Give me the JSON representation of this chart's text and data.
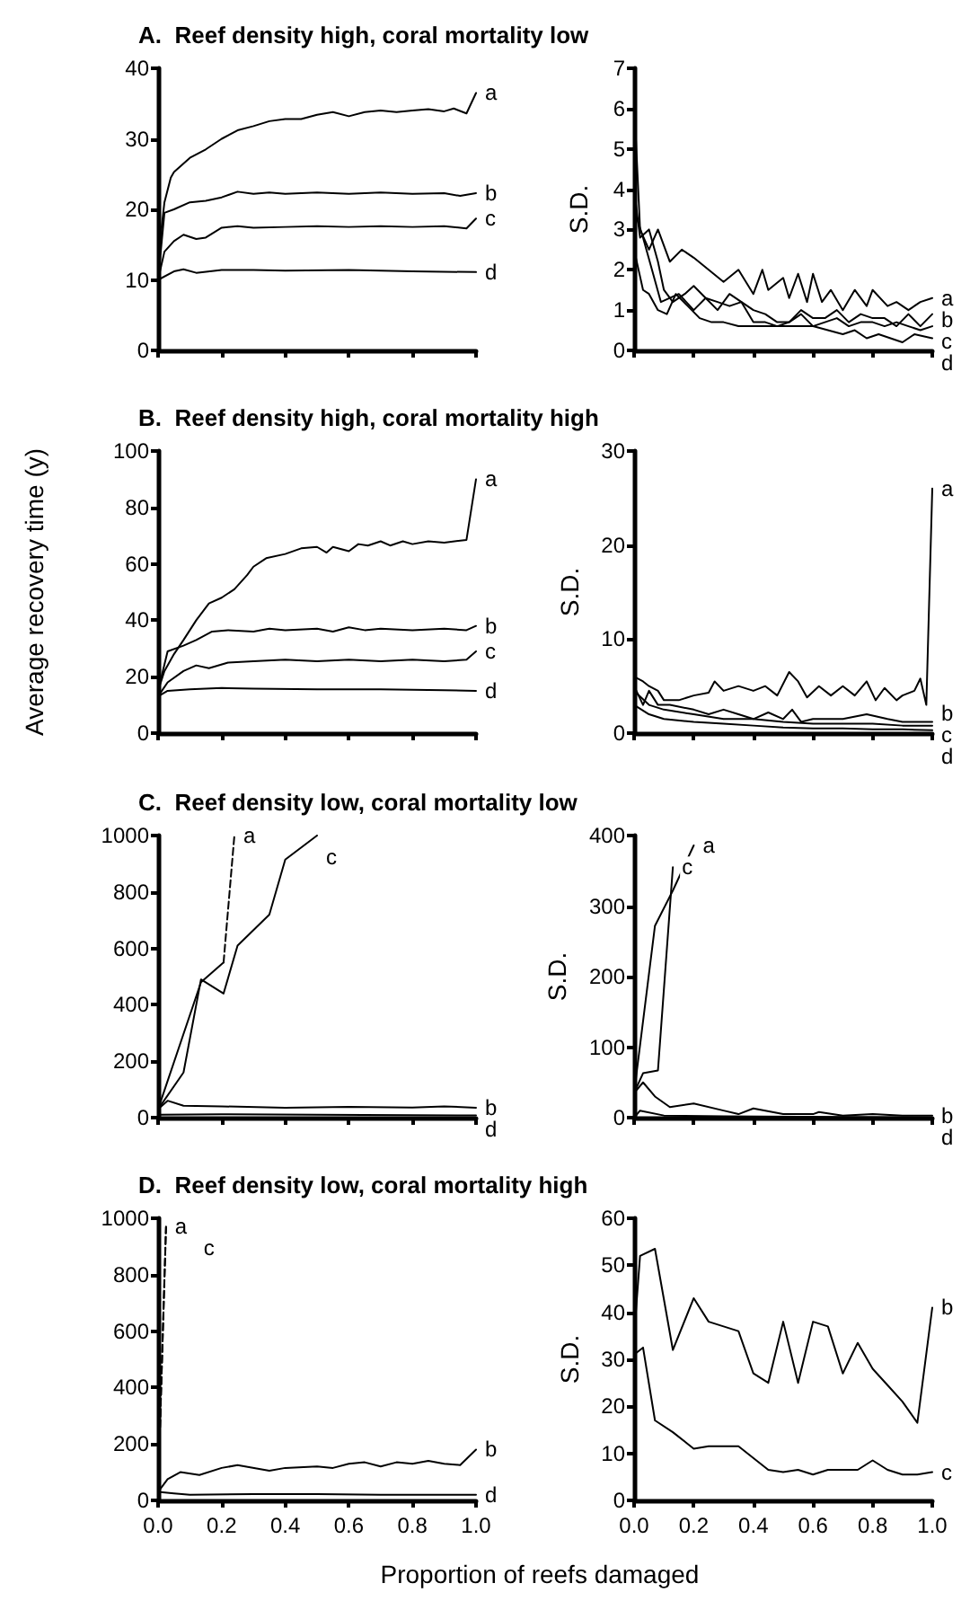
{
  "chart_data": [
    {
      "type": "line",
      "title": "A.  Reef density high, coral mortality low",
      "xlim": [
        0,
        1
      ],
      "xticks": [
        0,
        0.2,
        0.4,
        0.6,
        0.8,
        1
      ],
      "ylim": [
        0,
        40
      ],
      "yticks": [
        0,
        10,
        20,
        30,
        40
      ],
      "tick_labels": "y",
      "series": [
        {
          "name": "a",
          "color": "#000000",
          "x": [
            0,
            0.01,
            0.02,
            0.04,
            0.05,
            0.1,
            0.15,
            0.2,
            0.25,
            0.3,
            0.35,
            0.4,
            0.45,
            0.5,
            0.55,
            0.6,
            0.65,
            0.7,
            0.75,
            0.8,
            0.85,
            0.9,
            0.93,
            0.97,
            1
          ],
          "values": [
            10,
            17,
            21,
            24.5,
            25.3,
            27.3,
            28.5,
            30,
            31.2,
            31.8,
            32.5,
            32.8,
            32.8,
            33.4,
            33.8,
            33.2,
            33.8,
            34,
            33.8,
            34,
            34.2,
            33.9,
            34.3,
            33.6,
            36.5
          ]
        },
        {
          "name": "b",
          "color": "#000000",
          "x": [
            0,
            0.02,
            0.05,
            0.1,
            0.15,
            0.2,
            0.25,
            0.3,
            0.35,
            0.4,
            0.5,
            0.6,
            0.7,
            0.8,
            0.9,
            0.95,
            1
          ],
          "values": [
            10,
            19.5,
            20,
            21,
            21.2,
            21.7,
            22.5,
            22.2,
            22.4,
            22.2,
            22.4,
            22.2,
            22.4,
            22.2,
            22.3,
            21.9,
            22.3
          ]
        },
        {
          "name": "c",
          "color": "#000000",
          "x": [
            0,
            0.02,
            0.05,
            0.08,
            0.12,
            0.15,
            0.2,
            0.25,
            0.3,
            0.4,
            0.5,
            0.6,
            0.7,
            0.8,
            0.9,
            0.97,
            1
          ],
          "values": [
            10,
            14,
            15.5,
            16.4,
            15.8,
            16,
            17.4,
            17.6,
            17.4,
            17.5,
            17.6,
            17.5,
            17.6,
            17.5,
            17.6,
            17.3,
            18.7
          ]
        },
        {
          "name": "d",
          "color": "#000000",
          "x": [
            0,
            0.05,
            0.08,
            0.12,
            0.2,
            0.3,
            0.4,
            0.6,
            0.8,
            1
          ],
          "values": [
            10,
            11.2,
            11.5,
            11,
            11.4,
            11.4,
            11.3,
            11.4,
            11.2,
            11.1
          ]
        }
      ]
    },
    {
      "type": "line",
      "ylabel": "S.D.",
      "xlim": [
        0,
        1
      ],
      "xticks": [
        0,
        0.2,
        0.4,
        0.6,
        0.8,
        1
      ],
      "ylim": [
        0,
        7
      ],
      "yticks": [
        0,
        1,
        2,
        3,
        4,
        5,
        6,
        7
      ],
      "tick_labels": "y",
      "series": [
        {
          "name": "a",
          "color": "#000000",
          "x": [
            0,
            0.02,
            0.05,
            0.08,
            0.12,
            0.16,
            0.2,
            0.25,
            0.3,
            0.35,
            0.4,
            0.43,
            0.45,
            0.5,
            0.52,
            0.55,
            0.58,
            0.6,
            0.63,
            0.66,
            0.7,
            0.74,
            0.78,
            0.8,
            0.85,
            0.88,
            0.92,
            0.96,
            1
          ],
          "values": [
            6.2,
            3,
            2.5,
            3,
            2.2,
            2.5,
            2.3,
            2,
            1.7,
            2,
            1.4,
            2,
            1.5,
            1.8,
            1.3,
            1.9,
            1.2,
            1.9,
            1.2,
            1.5,
            1,
            1.5,
            1.1,
            1.5,
            1.1,
            1.2,
            1,
            1.2,
            1.3
          ]
        },
        {
          "name": "b",
          "color": "#000000",
          "x": [
            0,
            0.02,
            0.05,
            0.08,
            0.1,
            0.13,
            0.17,
            0.2,
            0.24,
            0.28,
            0.32,
            0.36,
            0.4,
            0.44,
            0.48,
            0.52,
            0.56,
            0.6,
            0.64,
            0.68,
            0.72,
            0.76,
            0.8,
            0.84,
            0.88,
            0.92,
            0.96,
            1
          ],
          "values": [
            4,
            2.8,
            3,
            2.2,
            1.5,
            1.2,
            1.4,
            1.6,
            1.3,
            1,
            1.4,
            1.2,
            1,
            0.9,
            0.7,
            0.7,
            1,
            0.8,
            0.8,
            1,
            0.7,
            0.9,
            0.8,
            0.8,
            0.6,
            0.9,
            0.6,
            0.9
          ]
        },
        {
          "name": "c",
          "color": "#000000",
          "x": [
            0,
            0.03,
            0.06,
            0.09,
            0.12,
            0.15,
            0.2,
            0.24,
            0.28,
            0.32,
            0.36,
            0.4,
            0.44,
            0.48,
            0.52,
            0.56,
            0.6,
            0.64,
            0.68,
            0.72,
            0.76,
            0.8,
            0.84,
            0.88,
            0.92,
            0.96,
            1
          ],
          "values": [
            3.5,
            2.8,
            2,
            1.2,
            1.3,
            1.4,
            1,
            1.3,
            1.2,
            1.1,
            1.2,
            0.7,
            0.7,
            0.6,
            0.7,
            0.9,
            0.6,
            0.7,
            0.8,
            0.6,
            0.7,
            0.7,
            0.6,
            0.7,
            0.6,
            0.5,
            0.6
          ]
        },
        {
          "name": "d",
          "color": "#000000",
          "x": [
            0,
            0.03,
            0.05,
            0.08,
            0.11,
            0.14,
            0.18,
            0.22,
            0.26,
            0.3,
            0.35,
            0.4,
            0.45,
            0.5,
            0.55,
            0.6,
            0.65,
            0.7,
            0.74,
            0.78,
            0.82,
            0.86,
            0.9,
            0.94,
            1
          ],
          "values": [
            2.5,
            1.5,
            1.4,
            1,
            0.9,
            1.4,
            1.1,
            0.8,
            0.7,
            0.7,
            0.6,
            0.6,
            0.6,
            0.6,
            0.6,
            0.6,
            0.5,
            0.4,
            0.5,
            0.3,
            0.4,
            0.3,
            0.2,
            0.4,
            0.3
          ]
        }
      ]
    },
    {
      "type": "line",
      "title": "B.  Reef density high, coral mortality high",
      "ylabel": "Average recovery time (y)",
      "xlim": [
        0,
        1
      ],
      "xticks": [
        0,
        0.2,
        0.4,
        0.6,
        0.8,
        1
      ],
      "ylim": [
        0,
        100
      ],
      "yticks": [
        0,
        20,
        40,
        60,
        80,
        100
      ],
      "tick_labels": "y",
      "series": [
        {
          "name": "a",
          "color": "#000000",
          "x": [
            0,
            0.02,
            0.05,
            0.08,
            0.12,
            0.16,
            0.2,
            0.24,
            0.28,
            0.3,
            0.34,
            0.4,
            0.45,
            0.5,
            0.53,
            0.55,
            0.6,
            0.63,
            0.66,
            0.7,
            0.73,
            0.77,
            0.8,
            0.85,
            0.9,
            0.97,
            1
          ],
          "values": [
            15,
            22,
            28,
            33,
            40,
            46,
            48,
            51,
            56,
            59,
            62,
            63.5,
            65.5,
            66,
            64,
            66,
            64.5,
            67,
            66.5,
            68,
            66.5,
            68,
            67,
            68,
            67.5,
            68.5,
            90
          ]
        },
        {
          "name": "b",
          "color": "#000000",
          "x": [
            0,
            0.03,
            0.08,
            0.12,
            0.17,
            0.22,
            0.3,
            0.35,
            0.4,
            0.5,
            0.55,
            0.6,
            0.65,
            0.7,
            0.8,
            0.9,
            0.97,
            1
          ],
          "values": [
            15,
            29,
            31,
            33,
            36,
            36.5,
            36,
            37,
            36.5,
            37,
            36,
            37.5,
            36.5,
            37,
            36.5,
            37,
            36.5,
            38
          ]
        },
        {
          "name": "c",
          "color": "#000000",
          "x": [
            0,
            0.03,
            0.08,
            0.12,
            0.16,
            0.22,
            0.3,
            0.4,
            0.5,
            0.6,
            0.7,
            0.8,
            0.9,
            0.97,
            1
          ],
          "values": [
            13,
            18,
            22,
            24,
            23,
            25,
            25.5,
            26,
            25.5,
            26,
            25.5,
            26,
            25.5,
            26,
            29
          ]
        },
        {
          "name": "d",
          "color": "#000000",
          "x": [
            0,
            0.03,
            0.1,
            0.2,
            0.3,
            0.5,
            0.7,
            0.9,
            1
          ],
          "values": [
            13,
            15,
            15.5,
            16,
            15.8,
            15.5,
            15.5,
            15.2,
            15
          ]
        }
      ]
    },
    {
      "type": "line",
      "ylabel": "S.D.",
      "xlim": [
        0,
        1
      ],
      "xticks": [
        0,
        0.2,
        0.4,
        0.6,
        0.8,
        1
      ],
      "ylim": [
        0,
        30
      ],
      "yticks": [
        0,
        10,
        20,
        30
      ],
      "tick_labels": "y",
      "series": [
        {
          "name": "a",
          "color": "#000000",
          "x": [
            0,
            0.03,
            0.05,
            0.08,
            0.1,
            0.15,
            0.2,
            0.25,
            0.27,
            0.3,
            0.35,
            0.4,
            0.44,
            0.48,
            0.52,
            0.55,
            0.58,
            0.62,
            0.66,
            0.7,
            0.74,
            0.78,
            0.81,
            0.84,
            0.88,
            0.9,
            0.94,
            0.96,
            0.98,
            1
          ],
          "values": [
            6,
            5.5,
            5,
            4.5,
            3.5,
            3.5,
            4,
            4.3,
            5.5,
            4.5,
            5,
            4.5,
            5,
            4,
            6.5,
            5.5,
            3.8,
            5,
            4,
            5,
            4,
            5.5,
            3.5,
            4.8,
            3.5,
            4,
            4.5,
            5.8,
            3,
            26
          ]
        },
        {
          "name": "b",
          "color": "#000000",
          "x": [
            0,
            0.03,
            0.05,
            0.08,
            0.12,
            0.2,
            0.25,
            0.3,
            0.35,
            0.4,
            0.45,
            0.5,
            0.53,
            0.56,
            0.6,
            0.7,
            0.78,
            0.85,
            0.9,
            1
          ],
          "values": [
            5,
            3,
            4.5,
            3,
            3,
            2.5,
            2,
            2.5,
            2,
            1.5,
            2.2,
            1.5,
            2.5,
            1.2,
            1.5,
            1.5,
            2,
            1.5,
            1.2,
            1.2
          ]
        },
        {
          "name": "c",
          "color": "#000000",
          "x": [
            0,
            0.05,
            0.1,
            0.2,
            0.3,
            0.4,
            0.5,
            0.6,
            0.7,
            0.8,
            0.9,
            1
          ],
          "values": [
            4.5,
            3,
            2.5,
            2,
            1.5,
            1.5,
            1.2,
            1,
            1,
            1,
            0.8,
            0.8
          ]
        },
        {
          "name": "d",
          "color": "#000000",
          "x": [
            0,
            0.05,
            0.1,
            0.2,
            0.3,
            0.4,
            0.5,
            0.6,
            0.7,
            0.8,
            0.9,
            1
          ],
          "values": [
            3,
            2,
            1.5,
            1.2,
            1,
            0.8,
            0.6,
            0.5,
            0.5,
            0.4,
            0.4,
            0.3
          ]
        }
      ]
    },
    {
      "type": "line",
      "title": "C.  Reef density low, coral mortality low",
      "xlim": [
        0,
        1
      ],
      "xticks": [
        0,
        0.2,
        0.4,
        0.6,
        0.8,
        1
      ],
      "ylim": [
        0,
        1000
      ],
      "yticks": [
        0,
        200,
        400,
        600,
        800,
        1000
      ],
      "tick_labels": "y",
      "series": [
        {
          "color": "#000000",
          "x": [
            0,
            0.135,
            0.206
          ],
          "values": [
            30,
            480,
            550
          ]
        },
        {
          "name": "a",
          "color": "#000000",
          "line_style": "dashed",
          "x": [
            0.206,
            0.24
          ],
          "values": [
            550,
            1000
          ]
        },
        {
          "name": "c",
          "color": "#000000",
          "x": [
            0,
            0.08,
            0.135,
            0.206,
            0.25,
            0.35,
            0.4,
            0.5
          ],
          "values": [
            30,
            160,
            490,
            440,
            610,
            720,
            915,
            1000
          ]
        },
        {
          "name": "b",
          "color": "#000000",
          "x": [
            0,
            0.03,
            0.08,
            0.2,
            0.4,
            0.6,
            0.8,
            0.9,
            1
          ],
          "values": [
            30,
            60,
            42,
            40,
            35,
            38,
            36,
            40,
            35
          ]
        },
        {
          "name": "d",
          "color": "#000000",
          "x": [
            0,
            0.2,
            0.5,
            1
          ],
          "values": [
            10,
            12,
            10,
            8
          ]
        }
      ]
    },
    {
      "type": "line",
      "ylabel": "S.D.",
      "xlim": [
        0,
        1
      ],
      "xticks": [
        0,
        0.2,
        0.4,
        0.6,
        0.8,
        1
      ],
      "ylim": [
        0,
        400
      ],
      "yticks": [
        0,
        100,
        200,
        300,
        400
      ],
      "tick_labels": "y",
      "series": [
        {
          "name": "c",
          "color": "#000000",
          "x": [
            0,
            0.03,
            0.08,
            0.13
          ],
          "values": [
            35,
            63,
            67,
            355
          ]
        },
        {
          "name": "a",
          "color": "#000000",
          "x": [
            0,
            0.07,
            0.13,
            0.2
          ],
          "values": [
            35,
            272,
            322,
            386
          ]
        },
        {
          "name": "b",
          "color": "#000000",
          "x": [
            0,
            0.03,
            0.07,
            0.12,
            0.2,
            0.3,
            0.35,
            0.4,
            0.5,
            0.6,
            0.62,
            0.7,
            0.8,
            0.9,
            1
          ],
          "values": [
            35,
            50,
            30,
            15,
            20,
            10,
            5,
            13,
            5,
            5,
            8,
            3,
            5,
            3,
            3
          ]
        },
        {
          "name": "d",
          "color": "#000000",
          "x": [
            0,
            0.02,
            0.1,
            0.3,
            1
          ],
          "values": [
            0,
            10,
            3,
            2,
            0
          ]
        }
      ]
    },
    {
      "type": "line",
      "title": "D.  Reef density low, coral mortality high",
      "xlabel": "Proportion of reefs damaged",
      "xlim": [
        0,
        1
      ],
      "xticks": [
        {
          "value": 0,
          "label": "0.0"
        },
        {
          "value": 0.2,
          "label": "0.2"
        },
        {
          "value": 0.4,
          "label": "0.4"
        },
        {
          "value": 0.6,
          "label": "0.6"
        },
        {
          "value": 0.8,
          "label": "0.8"
        },
        {
          "value": 1,
          "label": "1.0"
        }
      ],
      "ylim": [
        0,
        1000
      ],
      "yticks": [
        0,
        200,
        400,
        600,
        800,
        1000
      ],
      "series": [
        {
          "name": "a",
          "color": "#000000",
          "line_style": "dashed",
          "x": [
            0,
            0.025
          ],
          "values": [
            30,
            970
          ]
        },
        {
          "name": "c",
          "color": "#000000",
          "line_style": "dashed",
          "x": [
            0,
            0.025
          ],
          "values": [
            30,
            970
          ]
        },
        {
          "name": "b",
          "color": "#000000",
          "x": [
            0,
            0.03,
            0.07,
            0.13,
            0.2,
            0.25,
            0.35,
            0.4,
            0.5,
            0.55,
            0.6,
            0.65,
            0.7,
            0.75,
            0.8,
            0.85,
            0.9,
            0.95,
            1
          ],
          "values": [
            30,
            75,
            100,
            90,
            115,
            125,
            105,
            115,
            120,
            115,
            130,
            135,
            120,
            135,
            130,
            140,
            130,
            125,
            180
          ]
        },
        {
          "name": "d",
          "color": "#000000",
          "x": [
            0,
            0.05,
            0.1,
            0.3,
            0.5,
            0.7,
            1
          ],
          "values": [
            30,
            25,
            20,
            22,
            22,
            20,
            20
          ]
        }
      ]
    },
    {
      "type": "line",
      "ylabel": "S.D.",
      "xlim": [
        0,
        1
      ],
      "xticks": [
        {
          "value": 0,
          "label": "0.0"
        },
        {
          "value": 0.2,
          "label": "0.2"
        },
        {
          "value": 0.4,
          "label": "0.4"
        },
        {
          "value": 0.6,
          "label": "0.6"
        },
        {
          "value": 0.8,
          "label": "0.8"
        },
        {
          "value": 1,
          "label": "1.0"
        }
      ],
      "ylim": [
        0,
        60
      ],
      "yticks": [
        0,
        10,
        20,
        30,
        40,
        50,
        60
      ],
      "series": [
        {
          "name": "b",
          "color": "#000000",
          "x": [
            0,
            0.02,
            0.07,
            0.13,
            0.2,
            0.25,
            0.3,
            0.35,
            0.4,
            0.45,
            0.5,
            0.55,
            0.6,
            0.65,
            0.7,
            0.75,
            0.8,
            0.85,
            0.9,
            0.95,
            1
          ],
          "values": [
            35,
            52,
            53.5,
            32,
            43,
            38,
            37,
            36,
            27,
            25,
            38,
            25,
            38,
            37,
            27,
            33.5,
            28,
            24.5,
            21,
            16.5,
            41
          ]
        },
        {
          "name": "c",
          "color": "#000000",
          "x": [
            0,
            0.03,
            0.07,
            0.13,
            0.2,
            0.25,
            0.3,
            0.35,
            0.45,
            0.5,
            0.55,
            0.6,
            0.65,
            0.7,
            0.75,
            0.8,
            0.85,
            0.9,
            0.95,
            1
          ],
          "values": [
            31,
            32.5,
            17,
            14.5,
            11,
            11.5,
            11.5,
            11.5,
            6.5,
            6,
            6.5,
            5.5,
            6.5,
            6.5,
            6.5,
            8.5,
            6.5,
            5.5,
            5.5,
            6
          ]
        }
      ]
    }
  ]
}
